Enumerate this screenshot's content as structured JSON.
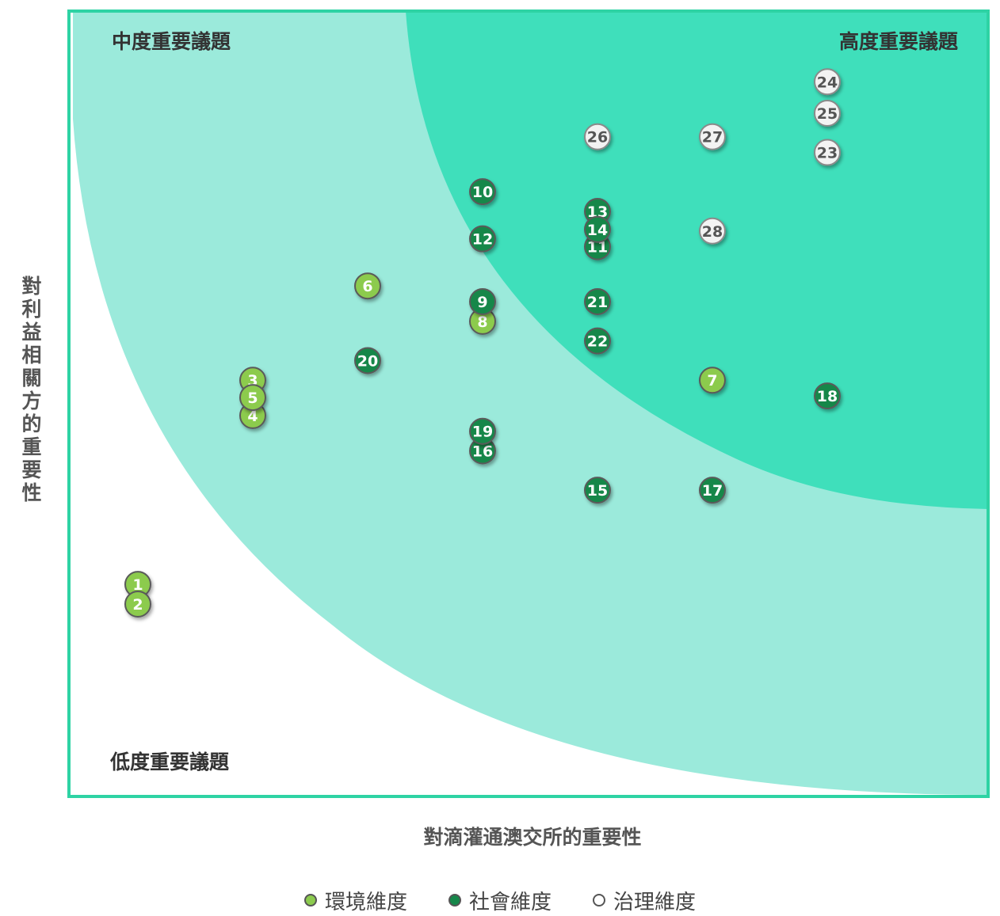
{
  "chart_data": {
    "type": "scatter",
    "title": "",
    "xlabel": "對滴灌通澳交所的重要性",
    "ylabel": "對利益相關方的重要性",
    "xlim": [
      0,
      8
    ],
    "ylim": [
      0,
      10
    ],
    "zones": [
      {
        "name": "中度重要議題",
        "color": "#9beadb"
      },
      {
        "name": "高度重要議題",
        "color": "#3fdfbb"
      },
      {
        "name": "低度重要議題",
        "color": "#ffffff"
      }
    ],
    "categories": [
      {
        "key": "env",
        "name": "環境維度",
        "color": "#8ccb4e"
      },
      {
        "key": "soc",
        "name": "社會維度",
        "color": "#16874a"
      },
      {
        "key": "gov",
        "name": "治理維度",
        "color": "#f3f3f3"
      }
    ],
    "points": [
      {
        "id": "1",
        "category": "env",
        "x": 0.6,
        "y": 2.7
      },
      {
        "id": "2",
        "category": "env",
        "x": 0.6,
        "y": 2.45
      },
      {
        "id": "3",
        "category": "env",
        "x": 1.6,
        "y": 5.3
      },
      {
        "id": "4",
        "category": "env",
        "x": 1.6,
        "y": 4.85
      },
      {
        "id": "5",
        "category": "env",
        "x": 1.6,
        "y": 5.08
      },
      {
        "id": "6",
        "category": "env",
        "x": 2.6,
        "y": 6.5
      },
      {
        "id": "7",
        "category": "env",
        "x": 5.6,
        "y": 5.3
      },
      {
        "id": "8",
        "category": "env",
        "x": 3.6,
        "y": 6.05
      },
      {
        "id": "9",
        "category": "soc",
        "x": 3.6,
        "y": 6.3
      },
      {
        "id": "10",
        "category": "soc",
        "x": 3.6,
        "y": 7.7
      },
      {
        "id": "11",
        "category": "soc",
        "x": 4.6,
        "y": 7.0
      },
      {
        "id": "12",
        "category": "soc",
        "x": 3.6,
        "y": 7.1
      },
      {
        "id": "13",
        "category": "soc",
        "x": 4.6,
        "y": 7.45
      },
      {
        "id": "14",
        "category": "soc",
        "x": 4.6,
        "y": 7.22
      },
      {
        "id": "15",
        "category": "soc",
        "x": 4.6,
        "y": 3.9
      },
      {
        "id": "16",
        "category": "soc",
        "x": 3.6,
        "y": 4.4
      },
      {
        "id": "17",
        "category": "soc",
        "x": 5.6,
        "y": 3.9
      },
      {
        "id": "18",
        "category": "soc",
        "x": 6.6,
        "y": 5.1
      },
      {
        "id": "19",
        "category": "soc",
        "x": 3.6,
        "y": 4.65
      },
      {
        "id": "20",
        "category": "soc",
        "x": 2.6,
        "y": 5.55
      },
      {
        "id": "21",
        "category": "soc",
        "x": 4.6,
        "y": 6.3
      },
      {
        "id": "22",
        "category": "soc",
        "x": 4.6,
        "y": 5.8
      },
      {
        "id": "23",
        "category": "gov",
        "x": 6.6,
        "y": 8.2
      },
      {
        "id": "24",
        "category": "gov",
        "x": 6.6,
        "y": 9.1
      },
      {
        "id": "25",
        "category": "gov",
        "x": 6.6,
        "y": 8.7
      },
      {
        "id": "26",
        "category": "gov",
        "x": 4.6,
        "y": 8.4
      },
      {
        "id": "27",
        "category": "gov",
        "x": 5.6,
        "y": 8.4
      },
      {
        "id": "28",
        "category": "gov",
        "x": 5.6,
        "y": 7.2
      }
    ]
  }
}
